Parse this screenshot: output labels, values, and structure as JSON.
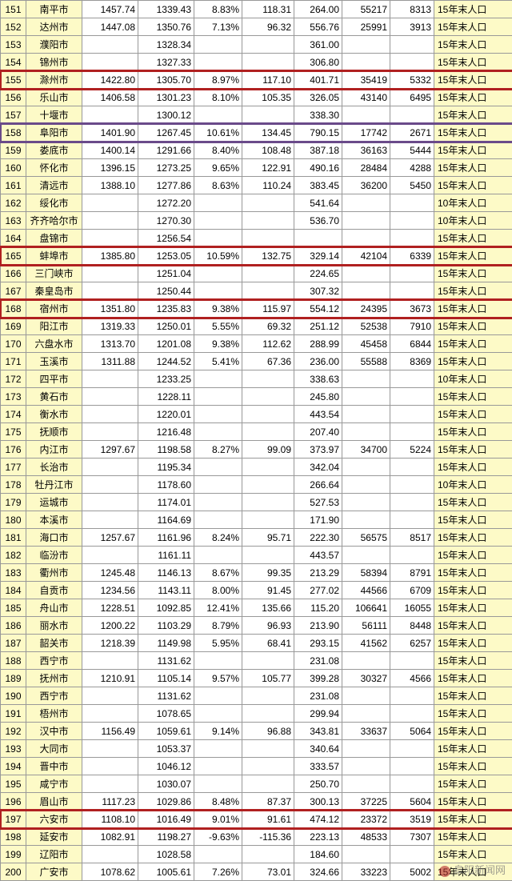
{
  "colors": {
    "yellow_bg": "#fdfac7",
    "border": "#999999",
    "highlight_red": "#b02020",
    "highlight_purple": "#6a4a8a"
  },
  "note_col_default": "15年末人口",
  "note_col_alt": "10年末人口",
  "watermark": "阜阳新闻网",
  "rows": [
    {
      "n": 151,
      "city": "南平市",
      "a": "1457.74",
      "b": "1339.43",
      "c": "8.83%",
      "d": "118.31",
      "e": "264.00",
      "f": "55217",
      "g": "8313",
      "note": "15年末人口"
    },
    {
      "n": 152,
      "city": "达州市",
      "a": "1447.08",
      "b": "1350.76",
      "c": "7.13%",
      "d": "96.32",
      "e": "556.76",
      "f": "25991",
      "g": "3913",
      "note": "15年末人口"
    },
    {
      "n": 153,
      "city": "濮阳市",
      "a": "",
      "b": "1328.34",
      "c": "",
      "d": "",
      "e": "361.00",
      "f": "",
      "g": "",
      "note": "15年末人口"
    },
    {
      "n": 154,
      "city": "锦州市",
      "a": "",
      "b": "1327.33",
      "c": "",
      "d": "",
      "e": "306.80",
      "f": "",
      "g": "",
      "note": "15年末人口"
    },
    {
      "n": 155,
      "city": "滁州市",
      "a": "1422.80",
      "b": "1305.70",
      "c": "8.97%",
      "d": "117.10",
      "e": "401.71",
      "f": "35419",
      "g": "5332",
      "note": "15年末人口",
      "hl": "red"
    },
    {
      "n": 156,
      "city": "乐山市",
      "a": "1406.58",
      "b": "1301.23",
      "c": "8.10%",
      "d": "105.35",
      "e": "326.05",
      "f": "43140",
      "g": "6495",
      "note": "15年末人口"
    },
    {
      "n": 157,
      "city": "十堰市",
      "a": "",
      "b": "1300.12",
      "c": "",
      "d": "",
      "e": "338.30",
      "f": "",
      "g": "",
      "note": "15年末人口"
    },
    {
      "n": 158,
      "city": "阜阳市",
      "a": "1401.90",
      "b": "1267.45",
      "c": "10.61%",
      "d": "134.45",
      "e": "790.15",
      "f": "17742",
      "g": "2671",
      "note": "15年末人口",
      "hl": "purple"
    },
    {
      "n": 159,
      "city": "娄底市",
      "a": "1400.14",
      "b": "1291.66",
      "c": "8.40%",
      "d": "108.48",
      "e": "387.18",
      "f": "36163",
      "g": "5444",
      "note": "15年末人口"
    },
    {
      "n": 160,
      "city": "怀化市",
      "a": "1396.15",
      "b": "1273.25",
      "c": "9.65%",
      "d": "122.91",
      "e": "490.16",
      "f": "28484",
      "g": "4288",
      "note": "15年末人口"
    },
    {
      "n": 161,
      "city": "清远市",
      "a": "1388.10",
      "b": "1277.86",
      "c": "8.63%",
      "d": "110.24",
      "e": "383.45",
      "f": "36200",
      "g": "5450",
      "note": "15年末人口"
    },
    {
      "n": 162,
      "city": "绥化市",
      "a": "",
      "b": "1272.20",
      "c": "",
      "d": "",
      "e": "541.64",
      "f": "",
      "g": "",
      "note": "10年末人口"
    },
    {
      "n": 163,
      "city": "齐齐哈尔市",
      "a": "",
      "b": "1270.30",
      "c": "",
      "d": "",
      "e": "536.70",
      "f": "",
      "g": "",
      "note": "10年末人口"
    },
    {
      "n": 164,
      "city": "盘锦市",
      "a": "",
      "b": "1256.54",
      "c": "",
      "d": "",
      "e": "",
      "f": "",
      "g": "",
      "note": "15年末人口"
    },
    {
      "n": 165,
      "city": "蚌埠市",
      "a": "1385.80",
      "b": "1253.05",
      "c": "10.59%",
      "d": "132.75",
      "e": "329.14",
      "f": "42104",
      "g": "6339",
      "note": "15年末人口",
      "hl": "red"
    },
    {
      "n": 166,
      "city": "三门峡市",
      "a": "",
      "b": "1251.04",
      "c": "",
      "d": "",
      "e": "224.65",
      "f": "",
      "g": "",
      "note": "15年末人口"
    },
    {
      "n": 167,
      "city": "秦皇岛市",
      "a": "",
      "b": "1250.44",
      "c": "",
      "d": "",
      "e": "307.32",
      "f": "",
      "g": "",
      "note": "15年末人口"
    },
    {
      "n": 168,
      "city": "宿州市",
      "a": "1351.80",
      "b": "1235.83",
      "c": "9.38%",
      "d": "115.97",
      "e": "554.12",
      "f": "24395",
      "g": "3673",
      "note": "15年末人口",
      "hl": "red"
    },
    {
      "n": 169,
      "city": "阳江市",
      "a": "1319.33",
      "b": "1250.01",
      "c": "5.55%",
      "d": "69.32",
      "e": "251.12",
      "f": "52538",
      "g": "7910",
      "note": "15年末人口"
    },
    {
      "n": 170,
      "city": "六盘水市",
      "a": "1313.70",
      "b": "1201.08",
      "c": "9.38%",
      "d": "112.62",
      "e": "288.99",
      "f": "45458",
      "g": "6844",
      "note": "15年末人口"
    },
    {
      "n": 171,
      "city": "玉溪市",
      "a": "1311.88",
      "b": "1244.52",
      "c": "5.41%",
      "d": "67.36",
      "e": "236.00",
      "f": "55588",
      "g": "8369",
      "note": "15年末人口"
    },
    {
      "n": 172,
      "city": "四平市",
      "a": "",
      "b": "1233.25",
      "c": "",
      "d": "",
      "e": "338.63",
      "f": "",
      "g": "",
      "note": "10年末人口"
    },
    {
      "n": 173,
      "city": "黄石市",
      "a": "",
      "b": "1228.11",
      "c": "",
      "d": "",
      "e": "245.80",
      "f": "",
      "g": "",
      "note": "15年末人口"
    },
    {
      "n": 174,
      "city": "衡水市",
      "a": "",
      "b": "1220.01",
      "c": "",
      "d": "",
      "e": "443.54",
      "f": "",
      "g": "",
      "note": "15年末人口"
    },
    {
      "n": 175,
      "city": "抚顺市",
      "a": "",
      "b": "1216.48",
      "c": "",
      "d": "",
      "e": "207.40",
      "f": "",
      "g": "",
      "note": "15年末人口"
    },
    {
      "n": 176,
      "city": "内江市",
      "a": "1297.67",
      "b": "1198.58",
      "c": "8.27%",
      "d": "99.09",
      "e": "373.97",
      "f": "34700",
      "g": "5224",
      "note": "15年末人口"
    },
    {
      "n": 177,
      "city": "长治市",
      "a": "",
      "b": "1195.34",
      "c": "",
      "d": "",
      "e": "342.04",
      "f": "",
      "g": "",
      "note": "15年末人口"
    },
    {
      "n": 178,
      "city": "牡丹江市",
      "a": "",
      "b": "1178.60",
      "c": "",
      "d": "",
      "e": "266.64",
      "f": "",
      "g": "",
      "note": "10年末人口"
    },
    {
      "n": 179,
      "city": "运城市",
      "a": "",
      "b": "1174.01",
      "c": "",
      "d": "",
      "e": "527.53",
      "f": "",
      "g": "",
      "note": "15年末人口"
    },
    {
      "n": 180,
      "city": "本溪市",
      "a": "",
      "b": "1164.69",
      "c": "",
      "d": "",
      "e": "171.90",
      "f": "",
      "g": "",
      "note": "15年末人口"
    },
    {
      "n": 181,
      "city": "海口市",
      "a": "1257.67",
      "b": "1161.96",
      "c": "8.24%",
      "d": "95.71",
      "e": "222.30",
      "f": "56575",
      "g": "8517",
      "note": "15年末人口"
    },
    {
      "n": 182,
      "city": "临汾市",
      "a": "",
      "b": "1161.11",
      "c": "",
      "d": "",
      "e": "443.57",
      "f": "",
      "g": "",
      "note": "15年末人口"
    },
    {
      "n": 183,
      "city": "衢州市",
      "a": "1245.48",
      "b": "1146.13",
      "c": "8.67%",
      "d": "99.35",
      "e": "213.29",
      "f": "58394",
      "g": "8791",
      "note": "15年末人口"
    },
    {
      "n": 184,
      "city": "自贡市",
      "a": "1234.56",
      "b": "1143.11",
      "c": "8.00%",
      "d": "91.45",
      "e": "277.02",
      "f": "44566",
      "g": "6709",
      "note": "15年末人口"
    },
    {
      "n": 185,
      "city": "舟山市",
      "a": "1228.51",
      "b": "1092.85",
      "c": "12.41%",
      "d": "135.66",
      "e": "115.20",
      "f": "106641",
      "g": "16055",
      "note": "15年末人口"
    },
    {
      "n": 186,
      "city": "丽水市",
      "a": "1200.22",
      "b": "1103.29",
      "c": "8.79%",
      "d": "96.93",
      "e": "213.90",
      "f": "56111",
      "g": "8448",
      "note": "15年末人口"
    },
    {
      "n": 187,
      "city": "韶关市",
      "a": "1218.39",
      "b": "1149.98",
      "c": "5.95%",
      "d": "68.41",
      "e": "293.15",
      "f": "41562",
      "g": "6257",
      "note": "15年末人口"
    },
    {
      "n": 188,
      "city": "西宁市",
      "a": "",
      "b": "1131.62",
      "c": "",
      "d": "",
      "e": "231.08",
      "f": "",
      "g": "",
      "note": "15年末人口"
    },
    {
      "n": 189,
      "city": "抚州市",
      "a": "1210.91",
      "b": "1105.14",
      "c": "9.57%",
      "d": "105.77",
      "e": "399.28",
      "f": "30327",
      "g": "4566",
      "note": "15年末人口"
    },
    {
      "n": 190,
      "city": "西宁市",
      "a": "",
      "b": "1131.62",
      "c": "",
      "d": "",
      "e": "231.08",
      "f": "",
      "g": "",
      "note": "15年末人口"
    },
    {
      "n": 191,
      "city": "梧州市",
      "a": "",
      "b": "1078.65",
      "c": "",
      "d": "",
      "e": "299.94",
      "f": "",
      "g": "",
      "note": "15年末人口"
    },
    {
      "n": 192,
      "city": "汉中市",
      "a": "1156.49",
      "b": "1059.61",
      "c": "9.14%",
      "d": "96.88",
      "e": "343.81",
      "f": "33637",
      "g": "5064",
      "note": "15年末人口"
    },
    {
      "n": 193,
      "city": "大同市",
      "a": "",
      "b": "1053.37",
      "c": "",
      "d": "",
      "e": "340.64",
      "f": "",
      "g": "",
      "note": "15年末人口"
    },
    {
      "n": 194,
      "city": "晋中市",
      "a": "",
      "b": "1046.12",
      "c": "",
      "d": "",
      "e": "333.57",
      "f": "",
      "g": "",
      "note": "15年末人口"
    },
    {
      "n": 195,
      "city": "咸宁市",
      "a": "",
      "b": "1030.07",
      "c": "",
      "d": "",
      "e": "250.70",
      "f": "",
      "g": "",
      "note": "15年末人口"
    },
    {
      "n": 196,
      "city": "眉山市",
      "a": "1117.23",
      "b": "1029.86",
      "c": "8.48%",
      "d": "87.37",
      "e": "300.13",
      "f": "37225",
      "g": "5604",
      "note": "15年末人口"
    },
    {
      "n": 197,
      "city": "六安市",
      "a": "1108.10",
      "b": "1016.49",
      "c": "9.01%",
      "d": "91.61",
      "e": "474.12",
      "f": "23372",
      "g": "3519",
      "note": "15年末人口",
      "hl": "red"
    },
    {
      "n": 198,
      "city": "延安市",
      "a": "1082.91",
      "b": "1198.27",
      "c": "-9.63%",
      "d": "-115.36",
      "e": "223.13",
      "f": "48533",
      "g": "7307",
      "note": "15年末人口"
    },
    {
      "n": 199,
      "city": "辽阳市",
      "a": "",
      "b": "1028.58",
      "c": "",
      "d": "",
      "e": "184.60",
      "f": "",
      "g": "",
      "note": "15年末人口"
    },
    {
      "n": 200,
      "city": "广安市",
      "a": "1078.62",
      "b": "1005.61",
      "c": "7.26%",
      "d": "73.01",
      "e": "324.66",
      "f": "33223",
      "g": "5002",
      "note": "15年末人口"
    }
  ]
}
